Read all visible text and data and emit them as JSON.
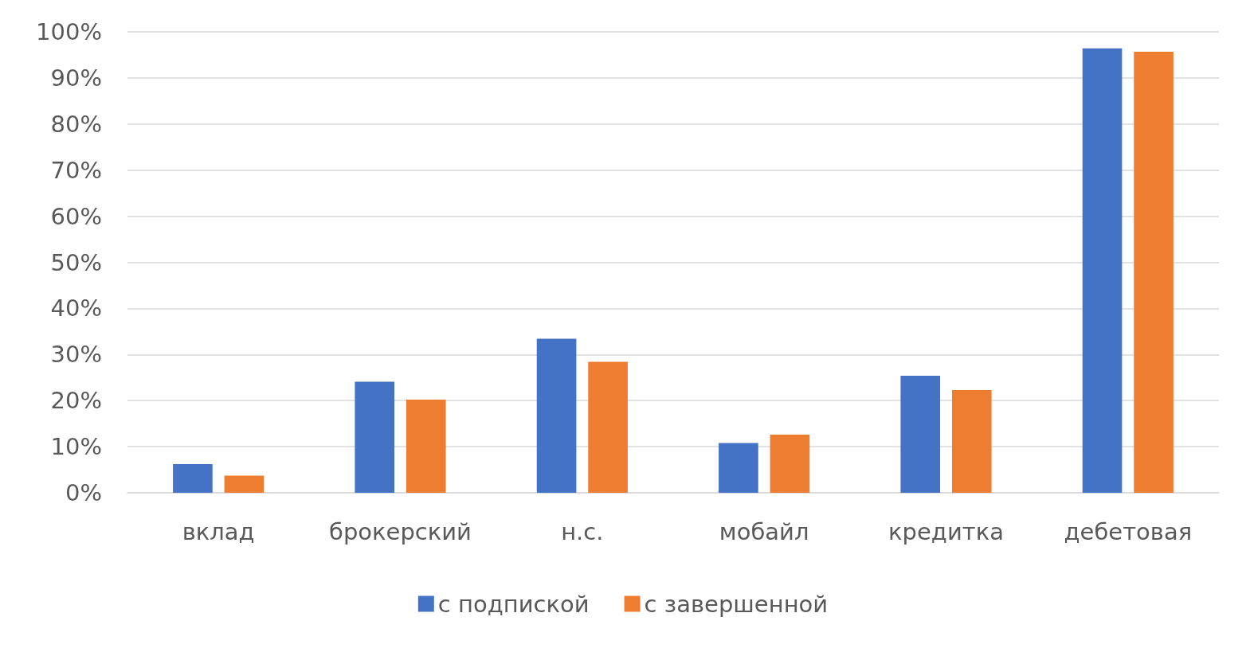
{
  "chart_data": {
    "type": "bar",
    "categories": [
      "вклад",
      "брокерский",
      "н.с.",
      "мобайл",
      "кредитка",
      "дебетовая"
    ],
    "series": [
      {
        "name": "с подпиской",
        "color": "#4472c4",
        "values": [
          6.2,
          24.1,
          33.4,
          10.8,
          25.4,
          96.4
        ]
      },
      {
        "name": "с завершенной",
        "color": "#ed7d31",
        "values": [
          3.7,
          20.2,
          28.4,
          12.6,
          22.3,
          95.7
        ]
      }
    ],
    "ylim": [
      0,
      100
    ],
    "yticks": [
      {
        "value": 0,
        "label": "0%"
      },
      {
        "value": 10,
        "label": "10%"
      },
      {
        "value": 20,
        "label": "20%"
      },
      {
        "value": 30,
        "label": "30%"
      },
      {
        "value": 40,
        "label": "40%"
      },
      {
        "value": 50,
        "label": "50%"
      },
      {
        "value": 60,
        "label": "60%"
      },
      {
        "value": 70,
        "label": "70%"
      },
      {
        "value": 80,
        "label": "80%"
      },
      {
        "value": 90,
        "label": "90%"
      },
      {
        "value": 100,
        "label": "100%"
      }
    ],
    "grid": "y",
    "legend": "bottom"
  }
}
